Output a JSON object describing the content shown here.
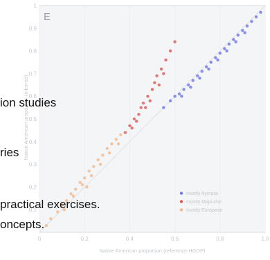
{
  "chart_data": {
    "type": "scatter",
    "panel_label": "E",
    "xlabel": "Native American proportion (reference HGDP)",
    "ylabel": "Native American proportion (inferred)",
    "xlim": [
      0,
      1
    ],
    "ylim": [
      0,
      1
    ],
    "x_ticks": [
      "0",
      "0.2",
      "0.4",
      "0.6",
      "0.8",
      "1.0"
    ],
    "y_ticks": [
      "0.1",
      "0.2",
      "0.3",
      "0.4",
      "0.5",
      "0.6",
      "0.7",
      "0.8",
      "0.9",
      "1"
    ],
    "legend_position": "bottom-right",
    "legend": [
      {
        "label": "mostly Aymara",
        "color": "#6f78e8"
      },
      {
        "label": "mostly Mapuche",
        "color": "#d95a5a"
      },
      {
        "label": "mostly European",
        "color": "#f2b88a"
      }
    ],
    "series": [
      {
        "name": "mostly Aymara",
        "color": "#6f78e8",
        "points": [
          [
            0.55,
            0.55
          ],
          [
            0.58,
            0.58
          ],
          [
            0.6,
            0.6
          ],
          [
            0.62,
            0.61
          ],
          [
            0.64,
            0.63
          ],
          [
            0.66,
            0.65
          ],
          [
            0.68,
            0.67
          ],
          [
            0.7,
            0.69
          ],
          [
            0.72,
            0.71
          ],
          [
            0.74,
            0.73
          ],
          [
            0.76,
            0.75
          ],
          [
            0.78,
            0.77
          ],
          [
            0.8,
            0.79
          ],
          [
            0.82,
            0.81
          ],
          [
            0.84,
            0.83
          ],
          [
            0.86,
            0.85
          ],
          [
            0.88,
            0.87
          ],
          [
            0.9,
            0.89
          ],
          [
            0.92,
            0.91
          ],
          [
            0.94,
            0.93
          ],
          [
            0.96,
            0.95
          ],
          [
            0.98,
            0.97
          ],
          [
            0.63,
            0.6
          ],
          [
            0.67,
            0.64
          ],
          [
            0.71,
            0.68
          ],
          [
            0.75,
            0.72
          ],
          [
            0.79,
            0.76
          ],
          [
            0.83,
            0.8
          ],
          [
            0.87,
            0.84
          ],
          [
            0.91,
            0.88
          ]
        ]
      },
      {
        "name": "mostly Mapuche",
        "color": "#d95a5a",
        "points": [
          [
            0.38,
            0.44
          ],
          [
            0.4,
            0.47
          ],
          [
            0.42,
            0.5
          ],
          [
            0.44,
            0.52
          ],
          [
            0.45,
            0.55
          ],
          [
            0.46,
            0.57
          ],
          [
            0.48,
            0.6
          ],
          [
            0.5,
            0.63
          ],
          [
            0.51,
            0.66
          ],
          [
            0.52,
            0.69
          ],
          [
            0.54,
            0.72
          ],
          [
            0.56,
            0.76
          ],
          [
            0.58,
            0.8
          ],
          [
            0.6,
            0.84
          ],
          [
            0.41,
            0.46
          ],
          [
            0.43,
            0.49
          ],
          [
            0.47,
            0.55
          ],
          [
            0.49,
            0.58
          ],
          [
            0.53,
            0.65
          ],
          [
            0.55,
            0.7
          ]
        ]
      },
      {
        "name": "mostly European",
        "color": "#f2b88a",
        "points": [
          [
            0.03,
            0.03
          ],
          [
            0.05,
            0.06
          ],
          [
            0.08,
            0.09
          ],
          [
            0.1,
            0.12
          ],
          [
            0.12,
            0.14
          ],
          [
            0.14,
            0.17
          ],
          [
            0.16,
            0.19
          ],
          [
            0.18,
            0.22
          ],
          [
            0.2,
            0.24
          ],
          [
            0.22,
            0.27
          ],
          [
            0.24,
            0.29
          ],
          [
            0.26,
            0.32
          ],
          [
            0.28,
            0.34
          ],
          [
            0.3,
            0.37
          ],
          [
            0.32,
            0.39
          ],
          [
            0.34,
            0.41
          ],
          [
            0.36,
            0.43
          ],
          [
            0.15,
            0.16
          ],
          [
            0.19,
            0.21
          ],
          [
            0.23,
            0.25
          ],
          [
            0.27,
            0.3
          ],
          [
            0.31,
            0.35
          ],
          [
            0.35,
            0.39
          ],
          [
            0.11,
            0.1
          ],
          [
            0.21,
            0.2
          ]
        ]
      }
    ]
  },
  "overlay_text": [
    "ion studies",
    "ries",
    "practical exercises.",
    "oncepts."
  ]
}
